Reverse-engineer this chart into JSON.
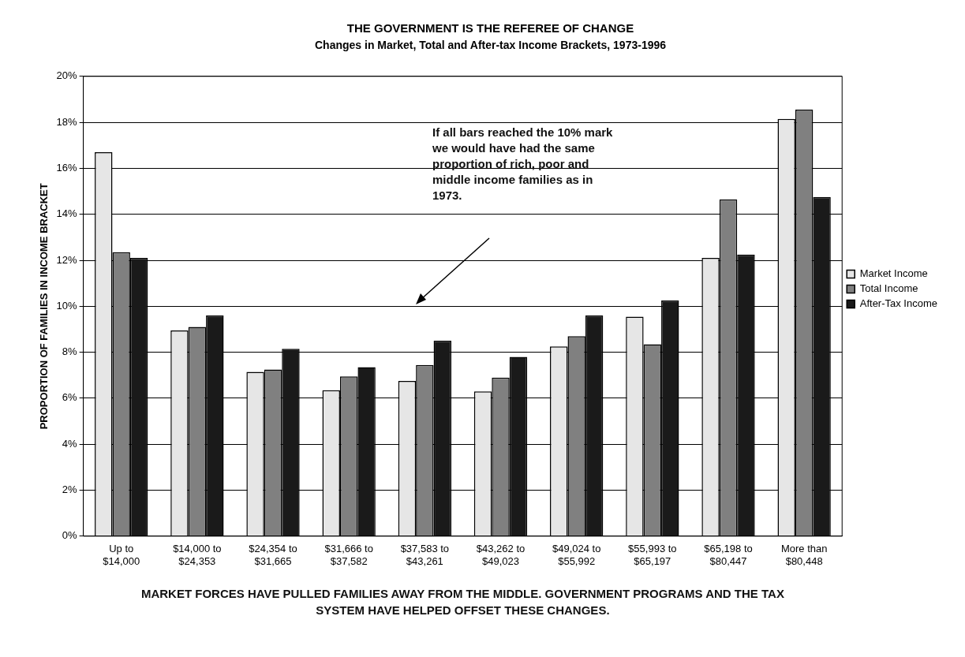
{
  "chart_data": {
    "type": "bar",
    "title": "THE GOVERNMENT IS THE REFEREE OF CHANGE",
    "subtitle": "Changes in Market, Total and After-tax Income Brackets, 1973-1996",
    "ylabel": "PROPORTION OF FAMILIES IN INCOME BRACKET",
    "categories": [
      "Up to\n$14,000",
      "$14,000 to\n$24,353",
      "$24,354 to\n$31,665",
      "$31,666 to\n$37,582",
      "$37,583 to\n$43,261",
      "$43,262 to\n$49,023",
      "$49,024 to\n$55,992",
      "$55,993 to\n$65,197",
      "$65,198 to\n$80,447",
      "More than\n$80,448"
    ],
    "series": [
      {
        "name": "Market Income",
        "color": "#e6e6e6",
        "values": [
          16.7,
          8.95,
          7.15,
          6.35,
          6.75,
          6.3,
          8.25,
          9.55,
          12.1,
          18.15
        ]
      },
      {
        "name": "Total Income",
        "color": "#808080",
        "values": [
          12.35,
          9.1,
          7.25,
          6.95,
          7.45,
          6.9,
          8.7,
          8.35,
          14.65,
          18.55
        ]
      },
      {
        "name": "After-Tax Income",
        "color": "#1a1a1a",
        "values": [
          12.1,
          9.6,
          8.15,
          7.35,
          8.5,
          7.8,
          9.6,
          10.25,
          12.25,
          14.75
        ]
      }
    ],
    "ylim": [
      0,
      20
    ],
    "yticks": [
      {
        "value": 0,
        "label": "0%"
      },
      {
        "value": 2,
        "label": "2%"
      },
      {
        "value": 4,
        "label": "4%"
      },
      {
        "value": 6,
        "label": "6%"
      },
      {
        "value": 8,
        "label": "8%"
      },
      {
        "value": 10,
        "label": "10%"
      },
      {
        "value": 12,
        "label": "12%"
      },
      {
        "value": 14,
        "label": "14%"
      },
      {
        "value": 16,
        "label": "16%"
      },
      {
        "value": 18,
        "label": "18%"
      },
      {
        "value": 20,
        "label": "20%"
      }
    ],
    "grid": "y",
    "legend": "right",
    "annotations": [
      "If all bars reached the 10% mark we would have had the same proportion of rich, poor and middle income families as in 1973.",
      "MARKET FORCES HAVE PULLED FAMILIES AWAY FROM THE MIDDLE. GOVERNMENT PROGRAMS AND THE TAX SYSTEM HAVE HELPED OFFSET THESE CHANGES."
    ]
  }
}
